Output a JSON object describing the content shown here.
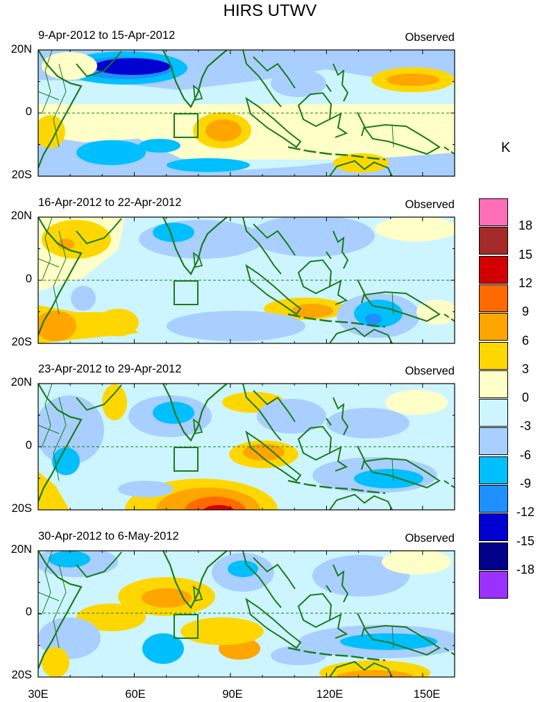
{
  "figure": {
    "title": "HIRS UTWV",
    "unit": "K",
    "panels": [
      {
        "title": "9-Apr-2012 to 15-Apr-2012",
        "label": "Observed"
      },
      {
        "title": "16-Apr-2012 to 22-Apr-2012",
        "label": "Observed"
      },
      {
        "title": "23-Apr-2012 to 29-Apr-2012",
        "label": "Observed"
      },
      {
        "title": "30-Apr-2012 to 6-May-2012",
        "label": "Observed"
      }
    ],
    "y_ticks": [
      "20N",
      "0",
      "20S"
    ],
    "x_ticks": [
      "30E",
      "60E",
      "90E",
      "120E",
      "150E"
    ],
    "colorbar": {
      "labels": [
        "18",
        "15",
        "12",
        "9",
        "6",
        "3",
        "0",
        "-3",
        "-6",
        "-9",
        "-12",
        "-15",
        "-18"
      ],
      "colors": [
        "#ff6fb8",
        "#a52a2a",
        "#d20000",
        "#ff6a00",
        "#ffa500",
        "#ffd700",
        "#ffffc8",
        "#cdf5ff",
        "#a8cfff",
        "#00bfff",
        "#1e90ff",
        "#0000d0",
        "#00008b",
        "#9b30ff"
      ]
    }
  }
}
